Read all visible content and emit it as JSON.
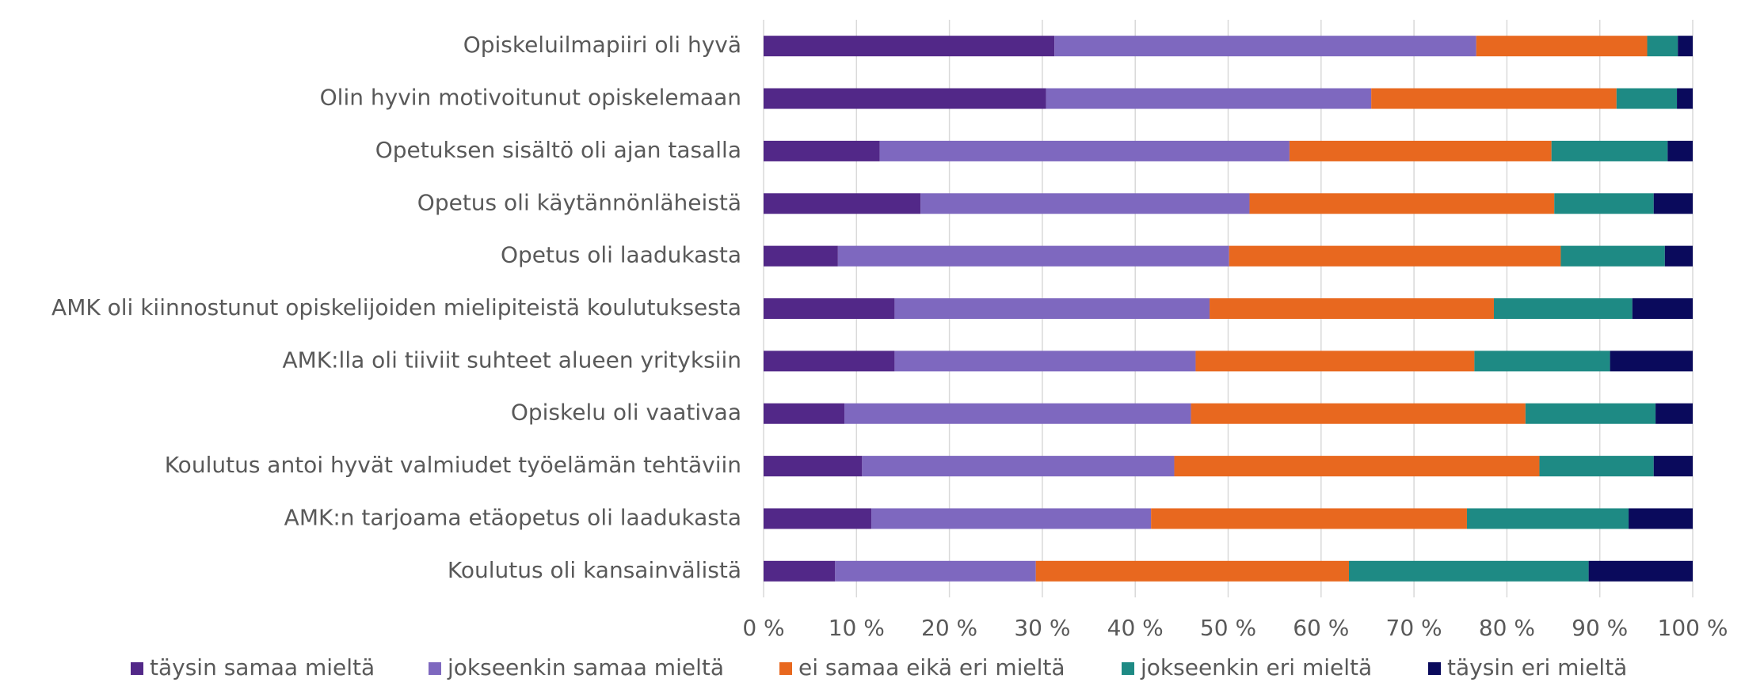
{
  "chart_data": {
    "type": "stacked-bar-horizontal",
    "categories": [
      "Opiskeluilmapiiri oli hyvä",
      "Olin hyvin motivoitunut opiskelemaan",
      "Opetuksen sisältö oli ajan tasalla",
      "Opetus oli käytännönläheistä",
      "Opetus oli laadukasta",
      "AMK oli kiinnostunut opiskelijoiden mielipiteistä koulutuksesta",
      "AMK:lla oli tiiviit suhteet alueen yrityksiin",
      "Opiskelu oli vaativaa",
      "Koulutus antoi hyvät valmiudet työelämän tehtäviin",
      "AMK:n tarjoama etäopetus oli laadukasta",
      "Koulutus oli kansainvälistä"
    ],
    "series": [
      {
        "name": "täysin samaa mieltä",
        "color": "#522888",
        "values": [
          31.3,
          30.4,
          12.5,
          16.9,
          8.0,
          14.1,
          14.1,
          8.7,
          10.6,
          11.6,
          7.7
        ]
      },
      {
        "name": "jokseenkin samaa mieltä",
        "color": "#7e68bf",
        "values": [
          45.4,
          35.0,
          44.1,
          35.4,
          42.1,
          33.9,
          32.4,
          37.3,
          33.6,
          30.1,
          21.6
        ]
      },
      {
        "name": "ei samaa eikä eri mieltä",
        "color": "#e8681f",
        "values": [
          18.4,
          26.4,
          28.2,
          32.8,
          35.7,
          30.6,
          30.0,
          36.0,
          39.3,
          34.0,
          33.7
        ]
      },
      {
        "name": "jokseenkin eri mieltä",
        "color": "#1e8a84",
        "values": [
          3.3,
          6.5,
          12.5,
          10.7,
          11.2,
          14.9,
          14.6,
          14.0,
          12.3,
          17.4,
          25.8
        ]
      },
      {
        "name": "täysin eri mieltä",
        "color": "#0a0a5c",
        "values": [
          1.6,
          1.7,
          2.7,
          4.2,
          3.0,
          6.5,
          8.9,
          4.0,
          4.2,
          6.9,
          11.2
        ]
      }
    ],
    "xlim": [
      0,
      100
    ],
    "xticks": [
      {
        "value": 0,
        "label": "0 %"
      },
      {
        "value": 10,
        "label": "10 %"
      },
      {
        "value": 20,
        "label": "20 %"
      },
      {
        "value": 30,
        "label": "30 %"
      },
      {
        "value": 40,
        "label": "40 %"
      },
      {
        "value": 50,
        "label": "50 %"
      },
      {
        "value": 60,
        "label": "60 %"
      },
      {
        "value": 70,
        "label": "70 %"
      },
      {
        "value": 80,
        "label": "80 %"
      },
      {
        "value": 90,
        "label": "90 %"
      },
      {
        "value": 100,
        "label": "100 %"
      }
    ],
    "grid": true,
    "legend": "bottom"
  }
}
